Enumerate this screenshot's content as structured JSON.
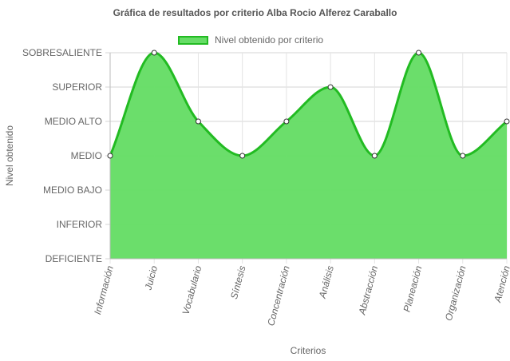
{
  "chart_data": {
    "type": "area",
    "title": "Gráfica de resultados por criterio Alba Rocio Alferez Caraballo",
    "xlabel": "Criterios",
    "ylabel": "Nivel obtenido",
    "y_levels": [
      "DEFICIENTE",
      "INFERIOR",
      "MEDIO BAJO",
      "MEDIO",
      "MEDIO ALTO",
      "SUPERIOR",
      "SOBRESALIENTE"
    ],
    "categories": [
      "Información",
      "Juicio",
      "Vocabulario",
      "Síntesis",
      "Concentración",
      "Análisis",
      "Abstracción",
      "Planeación",
      "Organización",
      "Atención"
    ],
    "series": [
      {
        "name": "Nivel obtenido por criterio",
        "values": [
          "MEDIO",
          "SOBRESALIENTE",
          "MEDIO ALTO",
          "MEDIO",
          "MEDIO ALTO",
          "SUPERIOR",
          "MEDIO",
          "SOBRESALIENTE",
          "MEDIO",
          "MEDIO ALTO"
        ]
      }
    ],
    "grid": true,
    "legend_position": "top",
    "colors": {
      "line": "#22bb22",
      "fill": "#66dd66",
      "point_fill": "#ffffff",
      "point_stroke": "#333333"
    }
  }
}
